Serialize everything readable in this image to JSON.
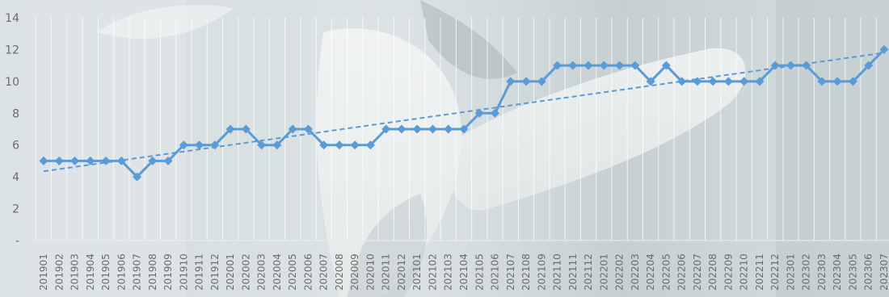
{
  "chart_data": {
    "type": "line",
    "title": "",
    "xlabel": "",
    "ylabel": "",
    "ylim": [
      0,
      14
    ],
    "y_ticks": [
      "-",
      "2",
      "4",
      "6",
      "8",
      "10",
      "12",
      "14"
    ],
    "grid": "vertical",
    "legend": "none",
    "categories": [
      "201901",
      "201902",
      "201903",
      "201904",
      "201905",
      "201906",
      "201907",
      "201908",
      "201909",
      "201910",
      "201911",
      "201912",
      "202001",
      "202002",
      "202003",
      "202004",
      "202005",
      "202006",
      "202007",
      "202008",
      "202009",
      "202010",
      "202011",
      "202012",
      "202101",
      "202102",
      "202103",
      "202104",
      "202105",
      "202106",
      "202107",
      "202108",
      "202109",
      "202110",
      "202111",
      "202112",
      "202201",
      "202202",
      "202203",
      "202204",
      "202205",
      "202206",
      "202207",
      "202208",
      "202209",
      "202210",
      "202211",
      "202212",
      "202301",
      "202302",
      "202303",
      "202304",
      "202305",
      "202306",
      "202307"
    ],
    "series": [
      {
        "values": [
          5,
          5,
          5,
          5,
          5,
          5,
          4,
          5,
          5,
          6,
          6,
          6,
          7,
          7,
          6,
          6,
          7,
          7,
          6,
          6,
          6,
          6,
          7,
          7,
          7,
          7,
          7,
          7,
          8,
          8,
          10,
          10,
          10,
          11,
          11,
          11,
          11,
          11,
          11,
          10,
          11,
          10,
          10,
          10,
          10,
          10,
          10,
          11,
          11,
          11,
          10,
          10,
          10,
          11,
          12
        ],
        "color": "#5b9bd5"
      }
    ],
    "trendline": {
      "style": "dashed",
      "color": "#5b9bd5",
      "start": 4.35,
      "end": 11.8
    }
  }
}
